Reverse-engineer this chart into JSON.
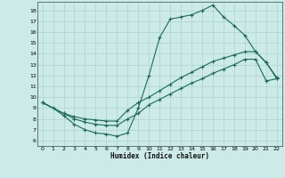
{
  "bg_color": "#cceae7",
  "grid_color": "#aad4d0",
  "line_color": "#1a6b5a",
  "xlabel": "Humidex (Indice chaleur)",
  "xlim": [
    -0.5,
    22.5
  ],
  "ylim": [
    5.5,
    18.8
  ],
  "xticks": [
    0,
    1,
    2,
    3,
    4,
    5,
    6,
    7,
    8,
    9,
    10,
    11,
    12,
    13,
    14,
    15,
    16,
    17,
    18,
    19,
    20,
    21,
    22
  ],
  "yticks": [
    6,
    7,
    8,
    9,
    10,
    11,
    12,
    13,
    14,
    15,
    16,
    17,
    18
  ],
  "line1_x": [
    0,
    1,
    2,
    3,
    4,
    5,
    6,
    7,
    8,
    9,
    10,
    11,
    12,
    13,
    14,
    15,
    16,
    17,
    18,
    19,
    20,
    21,
    22
  ],
  "line1_y": [
    9.5,
    9.0,
    8.3,
    7.5,
    7.0,
    6.7,
    6.6,
    6.4,
    6.7,
    9.0,
    12.0,
    15.5,
    17.2,
    17.4,
    17.6,
    18.0,
    18.5,
    17.4,
    16.6,
    15.7,
    14.2,
    13.2,
    11.7
  ],
  "line2_x": [
    0,
    2,
    3,
    4,
    5,
    6,
    7,
    8,
    9,
    10,
    11,
    12,
    13,
    14,
    15,
    16,
    17,
    18,
    19,
    20,
    21,
    22
  ],
  "line2_y": [
    9.5,
    8.5,
    8.2,
    8.0,
    7.9,
    7.8,
    7.8,
    8.8,
    9.5,
    10.0,
    10.6,
    11.2,
    11.8,
    12.3,
    12.8,
    13.3,
    13.6,
    13.9,
    14.2,
    14.2,
    13.2,
    11.8
  ],
  "line3_x": [
    0,
    2,
    3,
    4,
    5,
    6,
    7,
    8,
    9,
    10,
    11,
    12,
    13,
    14,
    15,
    16,
    17,
    18,
    19,
    20,
    21,
    22
  ],
  "line3_y": [
    9.5,
    8.5,
    8.0,
    7.7,
    7.5,
    7.4,
    7.4,
    8.0,
    8.5,
    9.3,
    9.8,
    10.3,
    10.8,
    11.3,
    11.7,
    12.2,
    12.6,
    13.0,
    13.5,
    13.5,
    11.5,
    11.7
  ]
}
